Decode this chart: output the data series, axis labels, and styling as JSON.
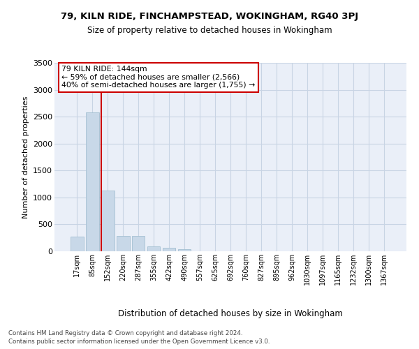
{
  "title1": "79, KILN RIDE, FINCHAMPSTEAD, WOKINGHAM, RG40 3PJ",
  "title2": "Size of property relative to detached houses in Wokingham",
  "xlabel": "Distribution of detached houses by size in Wokingham",
  "ylabel": "Number of detached properties",
  "bin_labels": [
    "17sqm",
    "85sqm",
    "152sqm",
    "220sqm",
    "287sqm",
    "355sqm",
    "422sqm",
    "490sqm",
    "557sqm",
    "625sqm",
    "692sqm",
    "760sqm",
    "827sqm",
    "895sqm",
    "962sqm",
    "1030sqm",
    "1097sqm",
    "1165sqm",
    "1232sqm",
    "1300sqm",
    "1367sqm"
  ],
  "bar_heights": [
    275,
    2580,
    1130,
    285,
    285,
    95,
    60,
    35,
    0,
    0,
    0,
    0,
    0,
    0,
    0,
    0,
    0,
    0,
    0,
    0,
    0
  ],
  "bar_color": "#c8d8e8",
  "bar_edge_color": "#9ab8cc",
  "grid_color": "#c8d4e4",
  "background_color": "#eaeff8",
  "red_line_x": 1.58,
  "annotation_text": "79 KILN RIDE: 144sqm\n← 59% of detached houses are smaller (2,566)\n40% of semi-detached houses are larger (1,755) →",
  "annotation_box_color": "#ffffff",
  "annotation_border_color": "#cc0000",
  "ylim": [
    0,
    3500
  ],
  "yticks": [
    0,
    500,
    1000,
    1500,
    2000,
    2500,
    3000,
    3500
  ],
  "footer1": "Contains HM Land Registry data © Crown copyright and database right 2024.",
  "footer2": "Contains public sector information licensed under the Open Government Licence v3.0."
}
